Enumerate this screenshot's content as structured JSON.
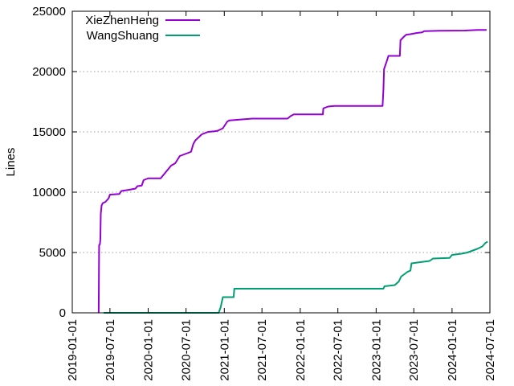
{
  "chart_data": {
    "type": "line",
    "title": "",
    "xlabel": "",
    "ylabel": "Lines",
    "xlim": [
      "2019-01-01",
      "2024-07-01"
    ],
    "ylim": [
      0,
      25000
    ],
    "grid": "horizontal-dotted",
    "legend_position": "top-left",
    "xticks": [
      "2019-01-01",
      "2019-07-01",
      "2020-01-01",
      "2020-07-01",
      "2021-01-01",
      "2021-07-01",
      "2022-01-01",
      "2022-07-01",
      "2023-01-01",
      "2023-07-01",
      "2024-01-01",
      "2024-07-01"
    ],
    "yticks": [
      0,
      5000,
      10000,
      15000,
      20000,
      25000
    ],
    "series": [
      {
        "name": "XieZhenHeng",
        "color": "#9400d3",
        "points": [
          [
            "2019-05-08",
            0
          ],
          [
            "2019-05-10",
            5600
          ],
          [
            "2019-05-14",
            5700
          ],
          [
            "2019-05-16",
            6100
          ],
          [
            "2019-05-18",
            8200
          ],
          [
            "2019-05-22",
            8900
          ],
          [
            "2019-05-28",
            9100
          ],
          [
            "2019-06-10",
            9200
          ],
          [
            "2019-06-25",
            9500
          ],
          [
            "2019-07-01",
            9800
          ],
          [
            "2019-08-15",
            9850
          ],
          [
            "2019-08-25",
            10100
          ],
          [
            "2019-10-01",
            10200
          ],
          [
            "2019-11-01",
            10300
          ],
          [
            "2019-11-10",
            10500
          ],
          [
            "2019-12-01",
            10550
          ],
          [
            "2019-12-10",
            11000
          ],
          [
            "2020-01-01",
            11150
          ],
          [
            "2020-03-01",
            11150
          ],
          [
            "2020-04-20",
            12200
          ],
          [
            "2020-05-10",
            12400
          ],
          [
            "2020-06-01",
            13000
          ],
          [
            "2020-07-25",
            13350
          ],
          [
            "2020-08-05",
            14000
          ],
          [
            "2020-08-15",
            14300
          ],
          [
            "2020-09-15",
            14800
          ],
          [
            "2020-10-15",
            15000
          ],
          [
            "2020-11-15",
            15050
          ],
          [
            "2020-12-01",
            15100
          ],
          [
            "2020-12-25",
            15300
          ],
          [
            "2021-01-15",
            15850
          ],
          [
            "2021-01-25",
            15950
          ],
          [
            "2021-05-15",
            16100
          ],
          [
            "2021-11-01",
            16100
          ],
          [
            "2021-11-15",
            16300
          ],
          [
            "2021-12-01",
            16450
          ],
          [
            "2022-04-20",
            16450
          ],
          [
            "2022-04-22",
            16950
          ],
          [
            "2022-05-15",
            17100
          ],
          [
            "2022-06-15",
            17150
          ],
          [
            "2023-02-01",
            17150
          ],
          [
            "2023-02-05",
            18500
          ],
          [
            "2023-02-08",
            20200
          ],
          [
            "2023-02-20",
            20800
          ],
          [
            "2023-03-01",
            21300
          ],
          [
            "2023-04-25",
            21300
          ],
          [
            "2023-04-28",
            22600
          ],
          [
            "2023-05-15",
            22900
          ],
          [
            "2023-05-25",
            23050
          ],
          [
            "2023-06-15",
            23100
          ],
          [
            "2023-07-15",
            23200
          ],
          [
            "2023-08-10",
            23250
          ],
          [
            "2023-08-20",
            23350
          ],
          [
            "2023-11-01",
            23380
          ],
          [
            "2024-03-01",
            23400
          ],
          [
            "2024-05-01",
            23450
          ],
          [
            "2024-06-15",
            23450
          ]
        ]
      },
      {
        "name": "WangShuang",
        "color": "#009e73",
        "points": [
          [
            "2019-06-01",
            0
          ],
          [
            "2020-12-05",
            0
          ],
          [
            "2020-12-15",
            500
          ],
          [
            "2020-12-25",
            1300
          ],
          [
            "2021-02-15",
            1300
          ],
          [
            "2021-02-18",
            2000
          ],
          [
            "2023-02-05",
            2000
          ],
          [
            "2023-02-10",
            2200
          ],
          [
            "2023-04-01",
            2300
          ],
          [
            "2023-04-20",
            2600
          ],
          [
            "2023-05-01",
            3000
          ],
          [
            "2023-06-01",
            3400
          ],
          [
            "2023-06-15",
            3500
          ],
          [
            "2023-06-20",
            4100
          ],
          [
            "2023-08-01",
            4200
          ],
          [
            "2023-09-15",
            4300
          ],
          [
            "2023-10-01",
            4500
          ],
          [
            "2023-12-20",
            4550
          ],
          [
            "2024-01-01",
            4800
          ],
          [
            "2024-02-15",
            4900
          ],
          [
            "2024-03-15",
            5000
          ],
          [
            "2024-05-01",
            5300
          ],
          [
            "2024-05-25",
            5500
          ],
          [
            "2024-06-10",
            5800
          ],
          [
            "2024-06-20",
            5900
          ]
        ]
      }
    ]
  }
}
